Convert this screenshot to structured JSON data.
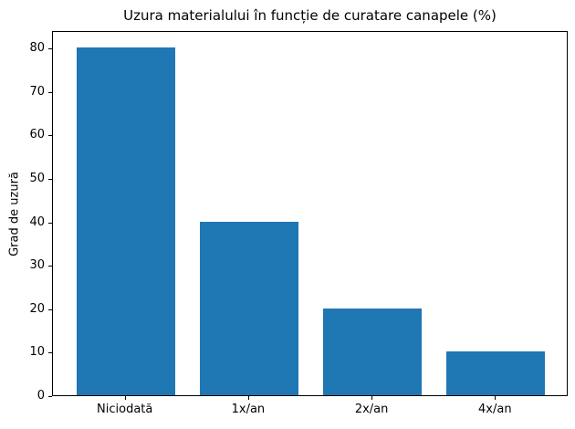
{
  "chart_data": {
    "type": "bar",
    "title": "Uzura materialului în funcție de curatare canapele (%)",
    "xlabel": "",
    "ylabel": "Grad de uzură",
    "categories": [
      "Niciodată",
      "1x/an",
      "2x/an",
      "4x/an"
    ],
    "values": [
      80,
      40,
      20,
      10
    ],
    "ylim": [
      0,
      84
    ],
    "xlim": [
      -0.59,
      3.59
    ],
    "yticks": [
      0,
      10,
      20,
      30,
      40,
      50,
      60,
      70,
      80
    ],
    "bar_width_frac": 0.8,
    "bar_color": "#1f77b4",
    "axis_color": "#000000",
    "background_color": "#ffffff",
    "grid": false,
    "legend": null
  }
}
